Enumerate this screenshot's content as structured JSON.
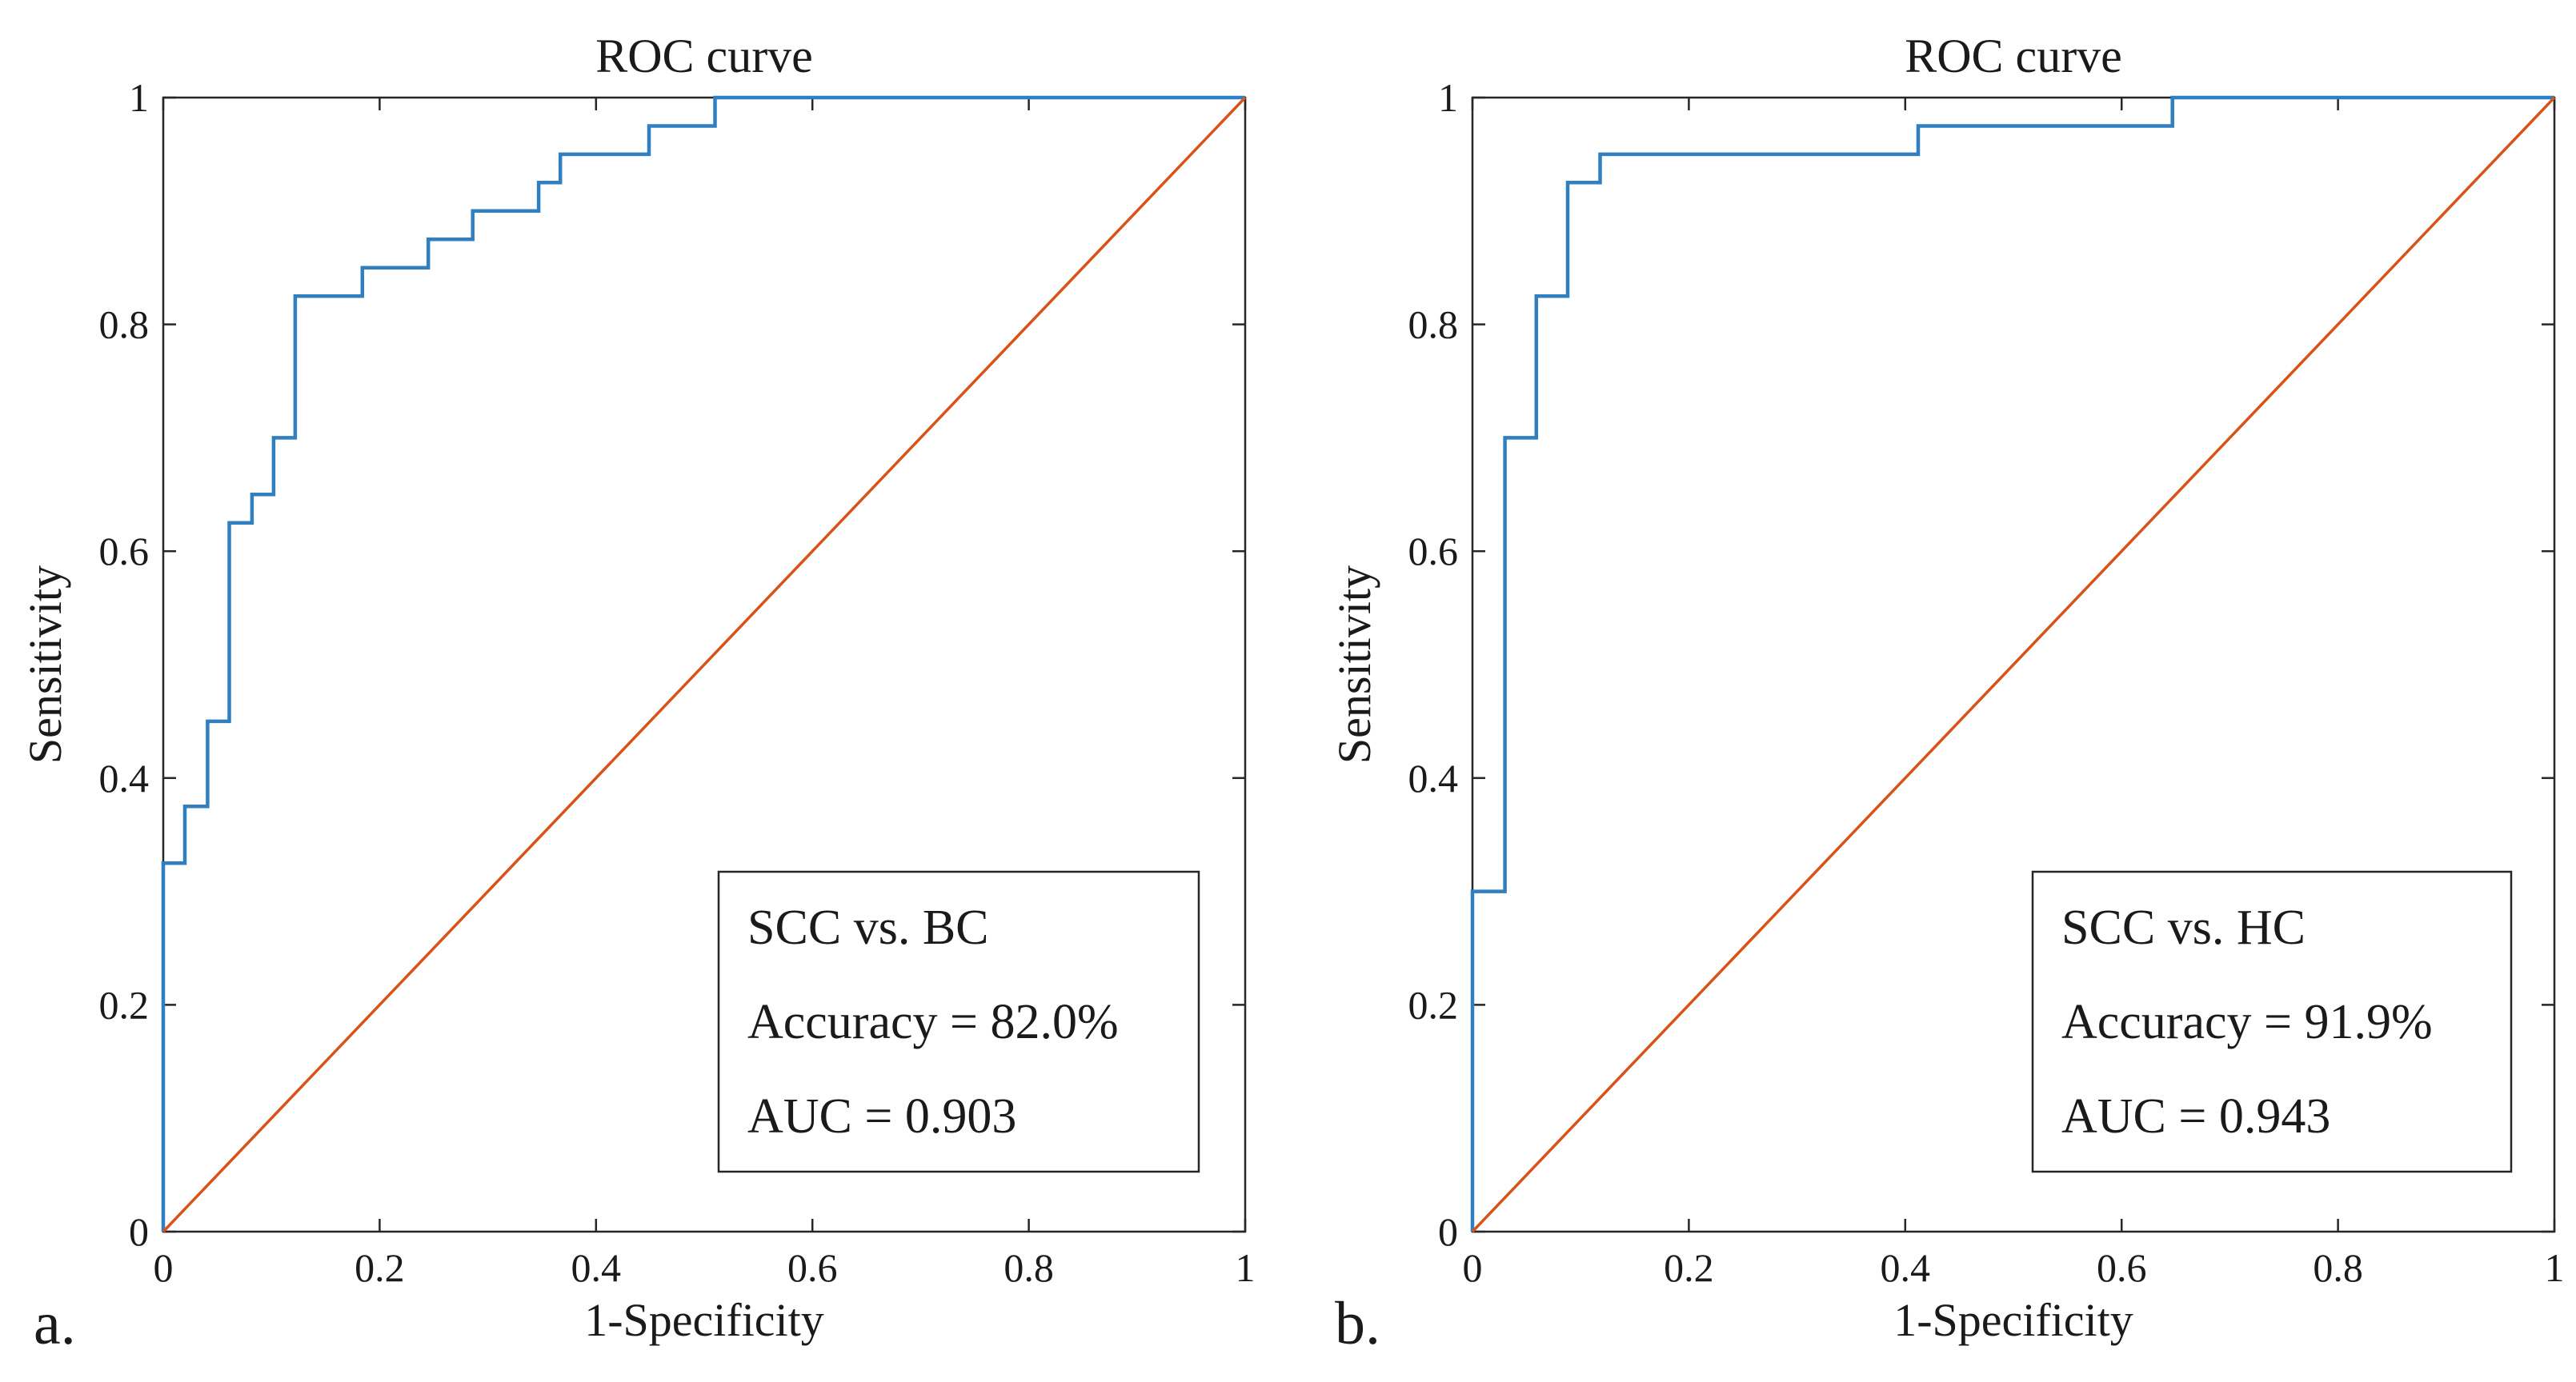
{
  "colors": {
    "roc": "#2f7fc1",
    "diagonal": "#d95319",
    "axis": "#262626"
  },
  "chart_data": [
    {
      "type": "line",
      "panel_label": "a.",
      "title": "ROC curve",
      "xlabel": "1-Specificity",
      "ylabel": "Sensitivity",
      "xlim": [
        0,
        1
      ],
      "ylim": [
        0,
        1
      ],
      "xticks": [
        0,
        0.2,
        0.4,
        0.6,
        0.8,
        1
      ],
      "yticks": [
        0,
        0.2,
        0.4,
        0.6,
        0.8,
        1
      ],
      "xtick_labels": [
        "0",
        "0.2",
        "0.4",
        "0.6",
        "0.8",
        "1"
      ],
      "ytick_labels": [
        "0",
        "0.2",
        "0.4",
        "0.6",
        "0.8",
        "1"
      ],
      "grid": false,
      "annotation": [
        "SCC vs. BC",
        "Accuracy = 82.0%",
        "AUC = 0.903"
      ],
      "series": [
        {
          "role": "roc",
          "points": [
            [
              0,
              0
            ],
            [
              0,
              0.325
            ],
            [
              0.02,
              0.325
            ],
            [
              0.02,
              0.375
            ],
            [
              0.041,
              0.375
            ],
            [
              0.041,
              0.45
            ],
            [
              0.061,
              0.45
            ],
            [
              0.061,
              0.625
            ],
            [
              0.082,
              0.625
            ],
            [
              0.082,
              0.65
            ],
            [
              0.102,
              0.65
            ],
            [
              0.102,
              0.7
            ],
            [
              0.122,
              0.7
            ],
            [
              0.122,
              0.825
            ],
            [
              0.184,
              0.825
            ],
            [
              0.184,
              0.85
            ],
            [
              0.245,
              0.85
            ],
            [
              0.245,
              0.875
            ],
            [
              0.286,
              0.875
            ],
            [
              0.286,
              0.9
            ],
            [
              0.347,
              0.9
            ],
            [
              0.347,
              0.925
            ],
            [
              0.367,
              0.925
            ],
            [
              0.367,
              0.95
            ],
            [
              0.449,
              0.95
            ],
            [
              0.449,
              0.975
            ],
            [
              0.51,
              0.975
            ],
            [
              0.51,
              1
            ],
            [
              1,
              1
            ]
          ]
        },
        {
          "role": "diagonal",
          "points": [
            [
              0,
              0
            ],
            [
              1,
              1
            ]
          ]
        }
      ]
    },
    {
      "type": "line",
      "panel_label": "b.",
      "title": "ROC curve",
      "xlabel": "1-Specificity",
      "ylabel": "Sensitivity",
      "xlim": [
        0,
        1
      ],
      "ylim": [
        0,
        1
      ],
      "xticks": [
        0,
        0.2,
        0.4,
        0.6,
        0.8,
        1
      ],
      "yticks": [
        0,
        0.2,
        0.4,
        0.6,
        0.8,
        1
      ],
      "xtick_labels": [
        "0",
        "0.2",
        "0.4",
        "0.6",
        "0.8",
        "1"
      ],
      "ytick_labels": [
        "0",
        "0.2",
        "0.4",
        "0.6",
        "0.8",
        "1"
      ],
      "grid": false,
      "annotation": [
        "SCC vs. HC",
        "Accuracy = 91.9%",
        "AUC = 0.943"
      ],
      "series": [
        {
          "role": "roc",
          "points": [
            [
              0,
              0
            ],
            [
              0,
              0.3
            ],
            [
              0.03,
              0.3
            ],
            [
              0.03,
              0.7
            ],
            [
              0.059,
              0.7
            ],
            [
              0.059,
              0.825
            ],
            [
              0.088,
              0.825
            ],
            [
              0.088,
              0.925
            ],
            [
              0.118,
              0.925
            ],
            [
              0.118,
              0.95
            ],
            [
              0.412,
              0.95
            ],
            [
              0.412,
              0.975
            ],
            [
              0.647,
              0.975
            ],
            [
              0.647,
              1
            ],
            [
              1,
              1
            ]
          ]
        },
        {
          "role": "diagonal",
          "points": [
            [
              0,
              0
            ],
            [
              1,
              1
            ]
          ]
        }
      ]
    }
  ]
}
